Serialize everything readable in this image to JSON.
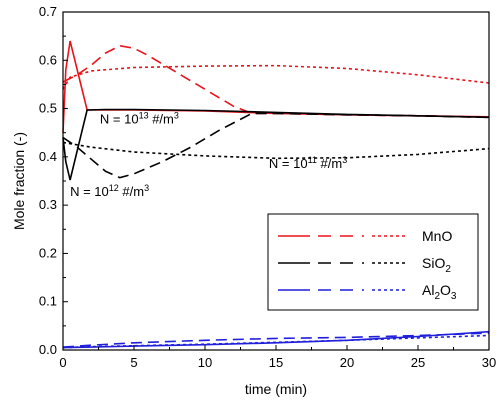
{
  "chart_data": {
    "type": "line",
    "xlabel": "time (min)",
    "ylabel": "Mole fraction (-)",
    "xlim": [
      0,
      30
    ],
    "ylim": [
      0,
      0.7
    ],
    "xticks": [
      "0",
      "5",
      "10",
      "15",
      "20",
      "25",
      "30"
    ],
    "yticks": [
      "0.0",
      "0.1",
      "0.2",
      "0.3",
      "0.4",
      "0.5",
      "0.6",
      "0.7"
    ],
    "grid": false,
    "legend_position": "lower-right",
    "legend": [
      {
        "label": "MnO",
        "sub": "",
        "after": "",
        "color": "#e8141b"
      },
      {
        "label": "SiO",
        "sub": "2",
        "after": "",
        "color": "#000000"
      },
      {
        "label": "Al",
        "sub": "2",
        "after": "O",
        "sub2": "3",
        "color": "#1f1fdc"
      }
    ],
    "annotations": [
      {
        "text": "N = 10",
        "sup": "13",
        "unit": " #/m",
        "unit_sup": "3",
        "x": 2.6,
        "y": 0.469
      },
      {
        "text": "N = 10",
        "sup": "12",
        "unit": " #/m",
        "unit_sup": "3",
        "x": 0.5,
        "y": 0.319
      },
      {
        "text": "N = 10",
        "sup": "11",
        "unit": " #/m",
        "unit_sup": "3",
        "x": 14.5,
        "y": 0.377
      }
    ],
    "series": [
      {
        "species": "MnO",
        "density": "1e13",
        "dash": "solid",
        "color": "#e8141b",
        "x": [
          0,
          0.2,
          0.5,
          1.7,
          3,
          5,
          10,
          15,
          20,
          25,
          30
        ],
        "y": [
          0.45,
          0.58,
          0.64,
          0.497,
          0.497,
          0.497,
          0.495,
          0.49,
          0.487,
          0.485,
          0.483
        ]
      },
      {
        "species": "MnO",
        "density": "1e12",
        "dash": "long-dash",
        "color": "#e8141b",
        "x": [
          0,
          1,
          2,
          3,
          4,
          5,
          6,
          8,
          10,
          12,
          13.3,
          15,
          20,
          25,
          30
        ],
        "y": [
          0.555,
          0.57,
          0.59,
          0.615,
          0.63,
          0.625,
          0.61,
          0.575,
          0.54,
          0.505,
          0.49,
          0.49,
          0.487,
          0.485,
          0.482
        ]
      },
      {
        "species": "MnO",
        "density": "1e11",
        "dash": "dotted",
        "color": "#e8141b",
        "x": [
          0,
          0.5,
          2,
          5,
          10,
          15,
          20,
          25,
          30
        ],
        "y": [
          0.54,
          0.565,
          0.578,
          0.585,
          0.588,
          0.589,
          0.583,
          0.57,
          0.553
        ]
      },
      {
        "species": "SiO2",
        "density": "1e13",
        "dash": "solid",
        "color": "#000000",
        "x": [
          0,
          0.2,
          0.5,
          1.7,
          3,
          5,
          10,
          15,
          20,
          25,
          30
        ],
        "y": [
          0.44,
          0.39,
          0.352,
          0.497,
          0.498,
          0.498,
          0.496,
          0.492,
          0.488,
          0.485,
          0.482
        ]
      },
      {
        "species": "SiO2",
        "density": "1e12",
        "dash": "long-dash",
        "color": "#000000",
        "x": [
          0,
          1,
          2,
          3,
          4,
          5,
          7,
          9,
          11,
          13.3,
          15,
          20,
          25,
          30
        ],
        "y": [
          0.44,
          0.42,
          0.395,
          0.37,
          0.357,
          0.365,
          0.39,
          0.42,
          0.455,
          0.49,
          0.49,
          0.487,
          0.485,
          0.482
        ]
      },
      {
        "species": "SiO2",
        "density": "1e11",
        "dash": "dotted",
        "color": "#000000",
        "x": [
          0,
          2,
          5,
          10,
          15,
          20,
          25,
          30
        ],
        "y": [
          0.43,
          0.42,
          0.41,
          0.402,
          0.397,
          0.398,
          0.405,
          0.417
        ]
      },
      {
        "species": "Al2O3",
        "density": "1e13",
        "dash": "solid",
        "color": "#1f1fdc",
        "x": [
          0,
          2,
          5,
          10,
          15,
          20,
          25,
          30
        ],
        "y": [
          0.005,
          0.006,
          0.008,
          0.011,
          0.015,
          0.02,
          0.028,
          0.038
        ]
      },
      {
        "species": "Al2O3",
        "density": "1e12",
        "dash": "long-dash",
        "color": "#1f1fdc",
        "x": [
          0,
          2,
          5,
          10,
          15,
          20,
          25,
          30
        ],
        "y": [
          0.006,
          0.01,
          0.015,
          0.02,
          0.024,
          0.026,
          0.03,
          0.035
        ]
      },
      {
        "species": "Al2O3",
        "density": "1e11",
        "dash": "dotted",
        "color": "#1f1fdc",
        "x": [
          0,
          2,
          5,
          10,
          15,
          20,
          25,
          30
        ],
        "y": [
          0.005,
          0.007,
          0.009,
          0.012,
          0.016,
          0.02,
          0.025,
          0.03
        ]
      }
    ]
  }
}
